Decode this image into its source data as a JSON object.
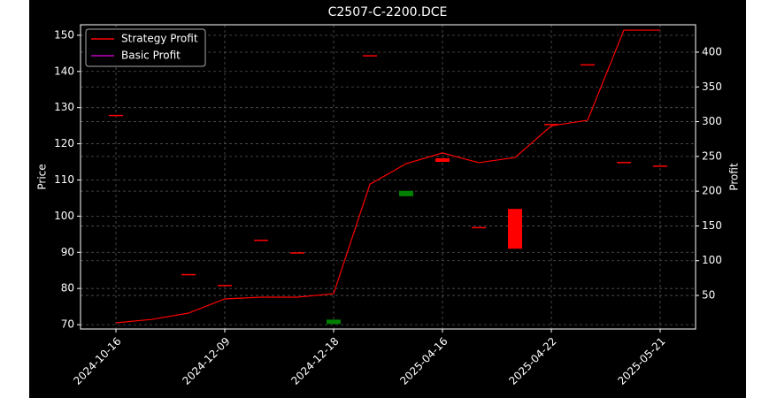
{
  "chart_data": {
    "type": "candlestick",
    "title": "C2507-C-2200.DCE",
    "y_label": "Price",
    "y2_label": "Profit",
    "categories": [
      "2024-10-16",
      null,
      null,
      "2024-12-09",
      null,
      null,
      "2024-12-18",
      null,
      null,
      "2025-04-16",
      null,
      null,
      "2025-04-22",
      null,
      null,
      "2025-05-21"
    ],
    "open": [
      128,
      null,
      84,
      81,
      93.5,
      90,
      70.2,
      144.5,
      105.5,
      116,
      97,
      102,
      125.5,
      142,
      115,
      114
    ],
    "close": [
      128,
      null,
      84,
      81,
      93.5,
      90,
      71.4,
      144.5,
      107,
      115,
      97,
      91,
      125.5,
      142,
      115,
      114
    ],
    "up_color": "#008000",
    "down_color": "#ff0000",
    "series": [
      {
        "name": "Strategy Profit",
        "color": "#ff0000",
        "axis": "y2",
        "values": [
          10.6,
          15.6,
          24.6,
          45,
          47.5,
          47.5,
          52.5,
          210,
          239.6,
          255,
          241,
          248.5,
          294,
          302,
          431.7,
          431.7
        ]
      },
      {
        "name": "Basic Profit",
        "color": "#bf00bf",
        "axis": "y2",
        "values": [
          null,
          null,
          null,
          null,
          null,
          null,
          null,
          null,
          null,
          null,
          null,
          null,
          null,
          null,
          null,
          null
        ]
      }
    ],
    "ylim": [
      68.8,
      152.9
    ],
    "yticks": [
      70,
      80,
      90,
      100,
      110,
      120,
      130,
      140,
      150
    ],
    "y2lim": [
      1.7,
      439.4
    ],
    "y2ticks": [
      50,
      100,
      150,
      200,
      250,
      300,
      350,
      400
    ],
    "grid": true,
    "legend": "upper left"
  }
}
